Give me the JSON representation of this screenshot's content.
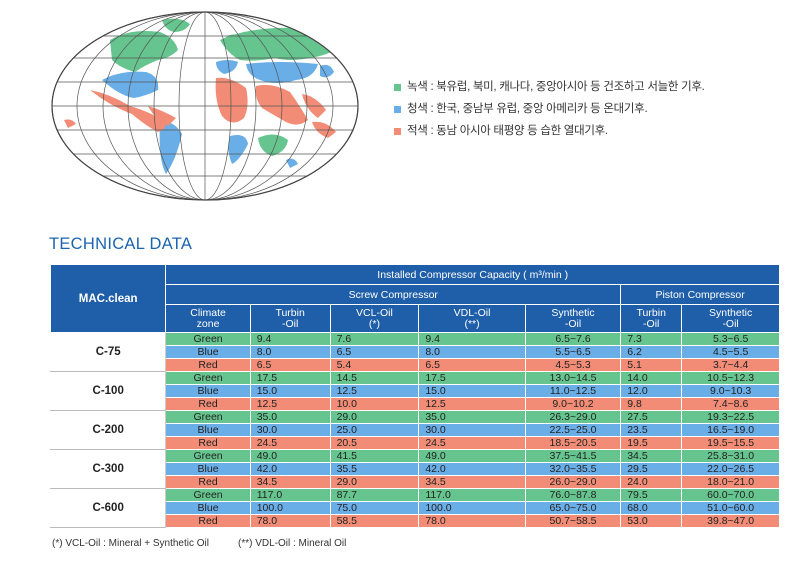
{
  "legend": [
    {
      "text": "녹색 : 북유럽, 북미, 캐나다, 중앙아시아 등 건조하고 서늘한 기후.",
      "color": "#66c58e"
    },
    {
      "text": "청색 : 한국, 중남부 유럽, 중앙 아메리카 등 온대기후.",
      "color": "#6aaee8"
    },
    {
      "text": "적색 : 동남 아시아 태평양 등 습한 열대기후.",
      "color": "#f28c76"
    }
  ],
  "section_title": "TECHNICAL DATA",
  "table": {
    "corner": "MAC.clean",
    "group_header": "Installed Compressor Capacity ( m³/min )",
    "screw_header": "Screw Compressor",
    "piston_header": "Piston Compressor",
    "col_headers": [
      [
        "Climate",
        "zone"
      ],
      [
        "Turbin",
        "-Oil"
      ],
      [
        "VCL-Oil",
        "(*)"
      ],
      [
        "VDL-Oil",
        "(**)"
      ],
      [
        "Synthetic",
        "-Oil"
      ],
      [
        "Turbin",
        "-Oil"
      ],
      [
        "Synthetic",
        "-Oil"
      ]
    ],
    "models": [
      {
        "name": "C-75",
        "rows": [
          [
            "Green",
            "9.4",
            "7.6",
            "9.4",
            "6.5~7.6",
            "7.3",
            "5.3~6.5"
          ],
          [
            "Blue",
            "8.0",
            "6.5",
            "8.0",
            "5.5~6.5",
            "6.2",
            "4.5~5.5"
          ],
          [
            "Red",
            "6.5",
            "5.4",
            "6.5",
            "4.5~5.3",
            "5.1",
            "3.7~4.4"
          ]
        ]
      },
      {
        "name": "C-100",
        "rows": [
          [
            "Green",
            "17.5",
            "14.5",
            "17.5",
            "13.0~14.5",
            "14.0",
            "10.5~12.3"
          ],
          [
            "Blue",
            "15.0",
            "12.5",
            "15.0",
            "11.0~12.5",
            "12.0",
            "9.0~10.3"
          ],
          [
            "Red",
            "12.5",
            "10.0",
            "12.5",
            "9.0~10.2",
            "9.8",
            "7.4~8.6"
          ]
        ]
      },
      {
        "name": "C-200",
        "rows": [
          [
            "Green",
            "35.0",
            "29.0",
            "35.0",
            "26.3~29.0",
            "27.5",
            "19.3~22.5"
          ],
          [
            "Blue",
            "30.0",
            "25.0",
            "30.0",
            "22.5~25.0",
            "23.5",
            "16.5~19.0"
          ],
          [
            "Red",
            "24.5",
            "20.5",
            "24.5",
            "18.5~20.5",
            "19.5",
            "19.5~15.5"
          ]
        ]
      },
      {
        "name": "C-300",
        "rows": [
          [
            "Green",
            "49.0",
            "41.5",
            "49.0",
            "37.5~41.5",
            "34.5",
            "25.8~31.0"
          ],
          [
            "Blue",
            "42.0",
            "35.5",
            "42.0",
            "32.0~35.5",
            "29.5",
            "22.0~26.5"
          ],
          [
            "Red",
            "34.5",
            "29.0",
            "34.5",
            "26.0~29.0",
            "24.0",
            "18.0~21.0"
          ]
        ]
      },
      {
        "name": "C-600",
        "rows": [
          [
            "Green",
            "117.0",
            "87.7",
            "117.0",
            "76.0~87.8",
            "79.5",
            "60.0~70.0"
          ],
          [
            "Blue",
            "100.0",
            "75.0",
            "100.0",
            "65.0~75.0",
            "68.0",
            "51.0~60.0"
          ],
          [
            "Red",
            "78.0",
            "58.5",
            "78.0",
            "50.7~58.5",
            "53.0",
            "39.8~47.0"
          ]
        ]
      }
    ]
  },
  "footnotes": [
    "(*) VCL-Oil : Mineral + Synthetic Oil",
    "(**) VDL-Oil : Mineral Oil"
  ],
  "colors": {
    "green": "#66c58e",
    "blue": "#6aaee8",
    "red": "#f28c76",
    "header": "#1f5ea8",
    "title": "#1b64ae"
  }
}
